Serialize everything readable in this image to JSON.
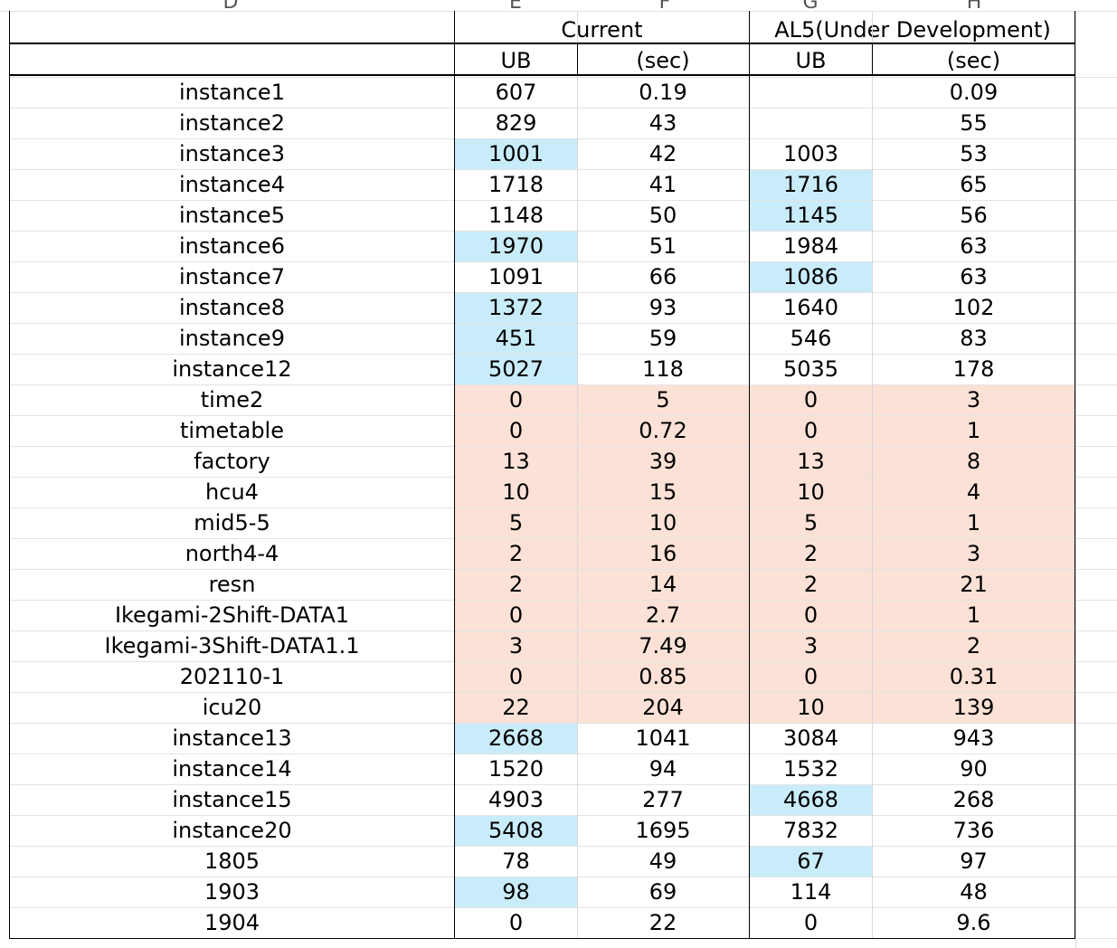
{
  "column_letters": [
    "D",
    "E",
    "F",
    "G",
    "H"
  ],
  "header": {
    "group_current": "Current",
    "group_al5": "AL5(Under Development)",
    "ub": "UB",
    "sec": "(sec)"
  },
  "colors": {
    "blue_highlight": "#c9ecfa",
    "pink_highlight": "#fbe1d6"
  },
  "rows": [
    {
      "name": "instance1",
      "cur_ub": "607",
      "cur_sec": "0.19",
      "al5_ub": "",
      "al5_sec": "0.09"
    },
    {
      "name": "instance2",
      "cur_ub": "829",
      "cur_sec": "43",
      "al5_ub": "",
      "al5_sec": "55"
    },
    {
      "name": "instance3",
      "cur_ub": "1001",
      "cur_sec": "42",
      "al5_ub": "1003",
      "al5_sec": "53"
    },
    {
      "name": "instance4",
      "cur_ub": "1718",
      "cur_sec": "41",
      "al5_ub": "1716",
      "al5_sec": "65"
    },
    {
      "name": "instance5",
      "cur_ub": "1148",
      "cur_sec": "50",
      "al5_ub": "1145",
      "al5_sec": "56"
    },
    {
      "name": "instance6",
      "cur_ub": "1970",
      "cur_sec": "51",
      "al5_ub": "1984",
      "al5_sec": "63"
    },
    {
      "name": "instance7",
      "cur_ub": "1091",
      "cur_sec": "66",
      "al5_ub": "1086",
      "al5_sec": "63"
    },
    {
      "name": "instance8",
      "cur_ub": "1372",
      "cur_sec": "93",
      "al5_ub": "1640",
      "al5_sec": "102"
    },
    {
      "name": "instance9",
      "cur_ub": "451",
      "cur_sec": "59",
      "al5_ub": "546",
      "al5_sec": "83"
    },
    {
      "name": "instance12",
      "cur_ub": "5027",
      "cur_sec": "118",
      "al5_ub": "5035",
      "al5_sec": "178"
    },
    {
      "name": "time2",
      "cur_ub": "0",
      "cur_sec": "5",
      "al5_ub": "0",
      "al5_sec": "3"
    },
    {
      "name": "timetable",
      "cur_ub": "0",
      "cur_sec": "0.72",
      "al5_ub": "0",
      "al5_sec": "1"
    },
    {
      "name": "factory",
      "cur_ub": "13",
      "cur_sec": "39",
      "al5_ub": "13",
      "al5_sec": "8"
    },
    {
      "name": "hcu4",
      "cur_ub": "10",
      "cur_sec": "15",
      "al5_ub": "10",
      "al5_sec": "4"
    },
    {
      "name": "mid5-5",
      "cur_ub": "5",
      "cur_sec": "10",
      "al5_ub": "5",
      "al5_sec": "1"
    },
    {
      "name": "north4-4",
      "cur_ub": "2",
      "cur_sec": "16",
      "al5_ub": "2",
      "al5_sec": "3"
    },
    {
      "name": "resn",
      "cur_ub": "2",
      "cur_sec": "14",
      "al5_ub": "2",
      "al5_sec": "21"
    },
    {
      "name": "Ikegami-2Shift-DATA1",
      "cur_ub": "0",
      "cur_sec": "2.7",
      "al5_ub": "0",
      "al5_sec": "1"
    },
    {
      "name": "Ikegami-3Shift-DATA1.1",
      "cur_ub": "3",
      "cur_sec": "7.49",
      "al5_ub": "3",
      "al5_sec": "2"
    },
    {
      "name": "202110-1",
      "cur_ub": "0",
      "cur_sec": "0.85",
      "al5_ub": "0",
      "al5_sec": "0.31"
    },
    {
      "name": "icu20",
      "cur_ub": "22",
      "cur_sec": "204",
      "al5_ub": "10",
      "al5_sec": "139"
    },
    {
      "name": "instance13",
      "cur_ub": "2668",
      "cur_sec": "1041",
      "al5_ub": "3084",
      "al5_sec": "943"
    },
    {
      "name": "instance14",
      "cur_ub": "1520",
      "cur_sec": "94",
      "al5_ub": "1532",
      "al5_sec": "90"
    },
    {
      "name": "instance15",
      "cur_ub": "4903",
      "cur_sec": "277",
      "al5_ub": "4668",
      "al5_sec": "268"
    },
    {
      "name": "instance20",
      "cur_ub": "5408",
      "cur_sec": "1695",
      "al5_ub": "7832",
      "al5_sec": "736"
    },
    {
      "name": "1805",
      "cur_ub": "78",
      "cur_sec": "49",
      "al5_ub": "67",
      "al5_sec": "97"
    },
    {
      "name": "1903",
      "cur_ub": "98",
      "cur_sec": "69",
      "al5_ub": "114",
      "al5_sec": "48"
    },
    {
      "name": "1904",
      "cur_ub": "0",
      "cur_sec": "22",
      "al5_ub": "0",
      "al5_sec": "9.6"
    }
  ],
  "highlights": {
    "blue": [
      {
        "row": 2,
        "col": "cur_ub"
      },
      {
        "row": 3,
        "col": "al5_ub"
      },
      {
        "row": 4,
        "col": "al5_ub"
      },
      {
        "row": 5,
        "col": "cur_ub"
      },
      {
        "row": 6,
        "col": "al5_ub"
      },
      {
        "row": 7,
        "col": "cur_ub"
      },
      {
        "row": 8,
        "col": "cur_ub"
      },
      {
        "row": 9,
        "col": "cur_ub"
      },
      {
        "row": 21,
        "col": "cur_ub"
      },
      {
        "row": 23,
        "col": "al5_ub"
      },
      {
        "row": 24,
        "col": "cur_ub"
      },
      {
        "row": 25,
        "col": "al5_ub"
      },
      {
        "row": 26,
        "col": "cur_ub"
      }
    ],
    "pink_rows": [
      10,
      11,
      12,
      13,
      14,
      15,
      16,
      17,
      18,
      19,
      20
    ]
  }
}
